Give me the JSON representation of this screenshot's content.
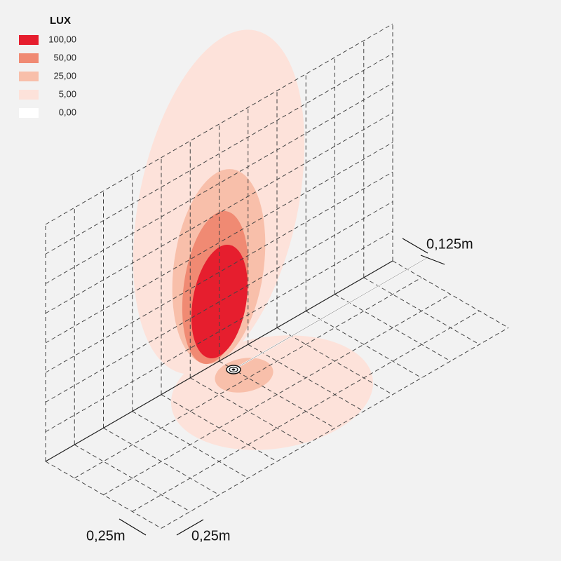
{
  "legend": {
    "title": "LUX",
    "items": [
      {
        "label": "100,00",
        "color": "#e61e2e"
      },
      {
        "label": "50,00",
        "color": "#f08a73"
      },
      {
        "label": "25,00",
        "color": "#f8bfaa"
      },
      {
        "label": "5,00",
        "color": "#fde2da"
      },
      {
        "label": "0,00",
        "color": "#ffffff"
      }
    ]
  },
  "dimensions": {
    "offset": "0,125m",
    "grid_a": "0,25m",
    "grid_b": "0,25m"
  }
}
